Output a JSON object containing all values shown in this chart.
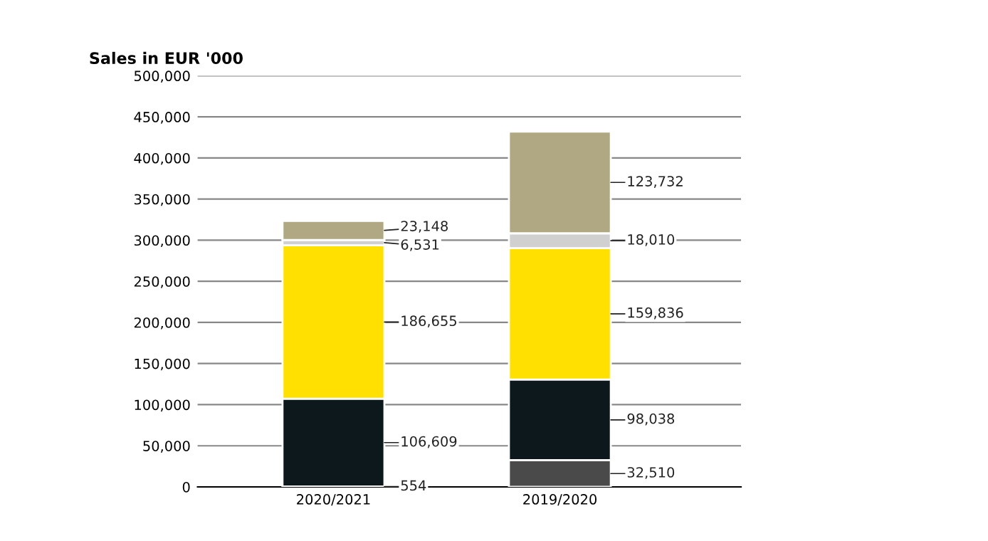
{
  "chart_data": {
    "type": "bar",
    "stacked": true,
    "title": "Sales in EUR '000",
    "categories": [
      "2020/2021",
      "2019/2020"
    ],
    "series": [
      {
        "color": "#4a4a4a",
        "values": [
          554,
          32510
        ],
        "value_labels": [
          "554",
          "32,510"
        ]
      },
      {
        "color": "#0d181c",
        "values": [
          106609,
          98038
        ],
        "value_labels": [
          "106,609",
          "98,038"
        ]
      },
      {
        "color": "#ffe000",
        "values": [
          186655,
          159836
        ],
        "value_labels": [
          "186,655",
          "159,836"
        ]
      },
      {
        "color": "#d0d0d0",
        "values": [
          6531,
          18010
        ],
        "value_labels": [
          "6,531",
          "18,010"
        ]
      },
      {
        "color": "#b0a882",
        "values": [
          23148,
          123732
        ],
        "value_labels": [
          "23,148",
          "123,732"
        ]
      }
    ],
    "ylim": [
      0,
      500000
    ],
    "yticks": [
      {
        "value": 0,
        "label": "0"
      },
      {
        "value": 50000,
        "label": "50,000"
      },
      {
        "value": 100000,
        "label": "100,000"
      },
      {
        "value": 150000,
        "label": "150,000"
      },
      {
        "value": 200000,
        "label": "200,000"
      },
      {
        "value": 250000,
        "label": "250,000"
      },
      {
        "value": 300000,
        "label": "300,000"
      },
      {
        "value": 350000,
        "label": "350,000"
      },
      {
        "value": 400000,
        "label": "400,000"
      },
      {
        "value": 450000,
        "label": "450,000"
      },
      {
        "value": 500000,
        "label": "500,000"
      }
    ],
    "grid": "y",
    "legend": false
  }
}
